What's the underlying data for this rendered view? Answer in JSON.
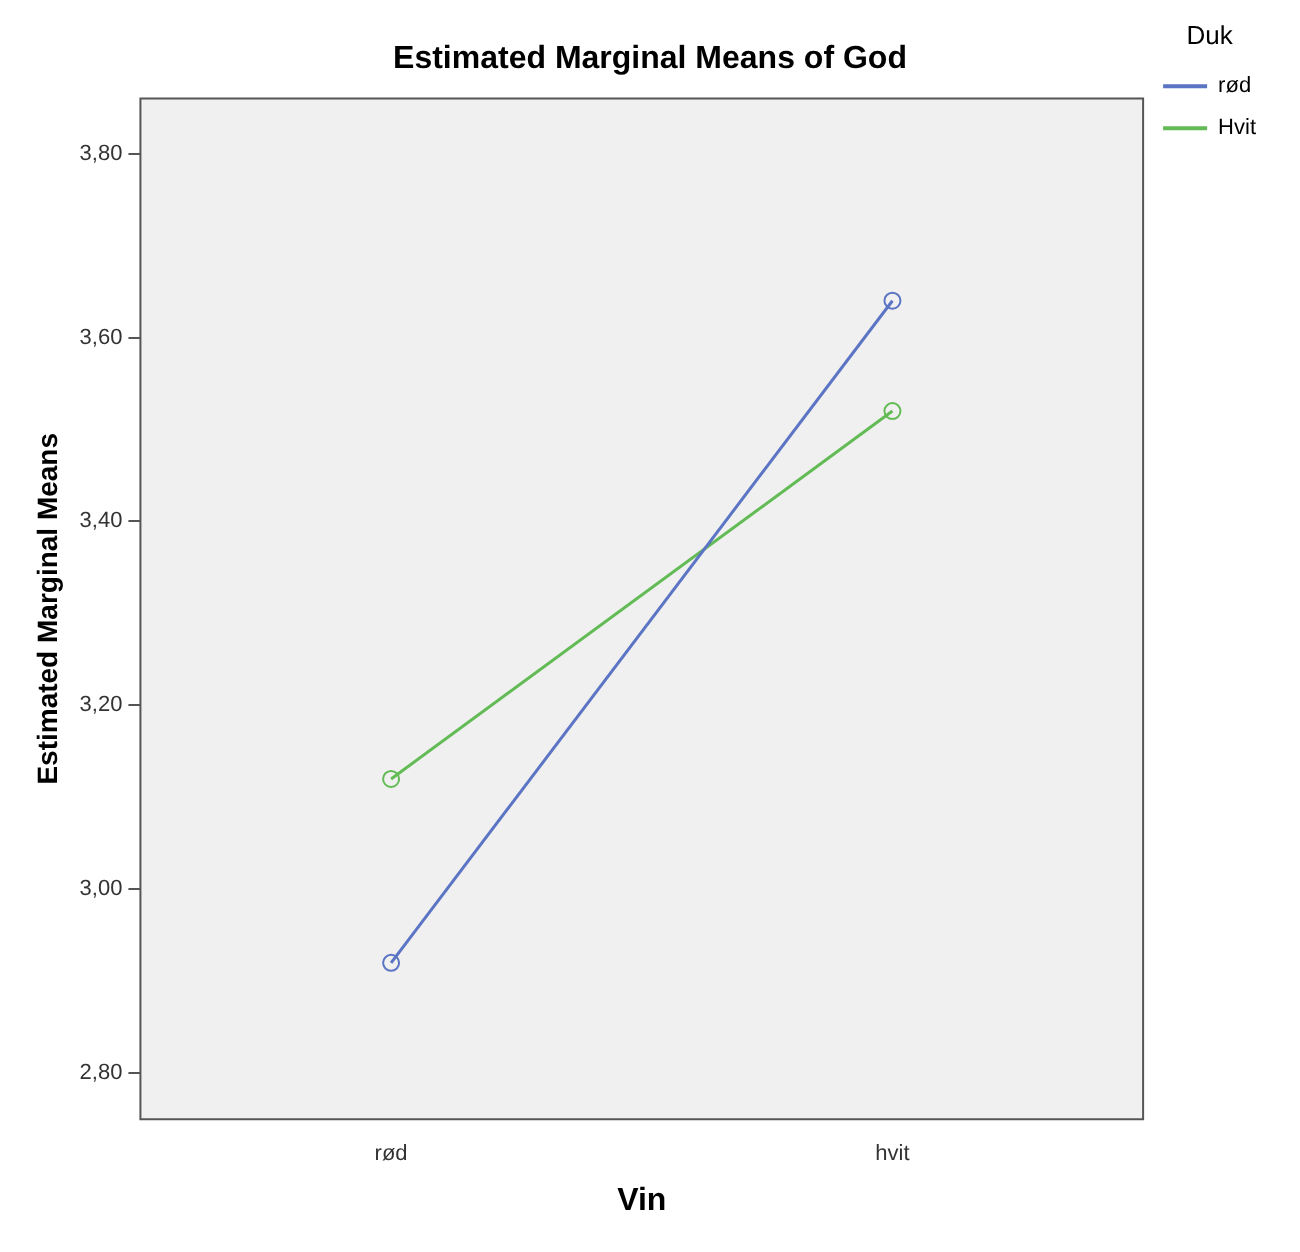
{
  "chart_data": {
    "type": "line",
    "title": "Estimated Marginal Means of God",
    "xlabel": "Vin",
    "ylabel": "Estimated Marginal Means",
    "legend_title": "Duk",
    "categories": [
      "rød",
      "hvit"
    ],
    "series": [
      {
        "name": "rød",
        "color": "#5b74c4",
        "values": [
          2.92,
          3.64
        ]
      },
      {
        "name": "Hvit",
        "color": "#62bb55",
        "values": [
          3.12,
          3.52
        ]
      }
    ],
    "ylim": [
      2.75,
      3.86
    ],
    "yticks": [
      {
        "value": 2.8,
        "label": "2,80"
      },
      {
        "value": 3.0,
        "label": "3,00"
      },
      {
        "value": 3.2,
        "label": "3,20"
      },
      {
        "value": 3.4,
        "label": "3,40"
      },
      {
        "value": 3.6,
        "label": "3,60"
      },
      {
        "value": 3.8,
        "label": "3,80"
      }
    ],
    "grid": false,
    "legend": "top right",
    "marker": "circle",
    "line_style": "solid"
  }
}
